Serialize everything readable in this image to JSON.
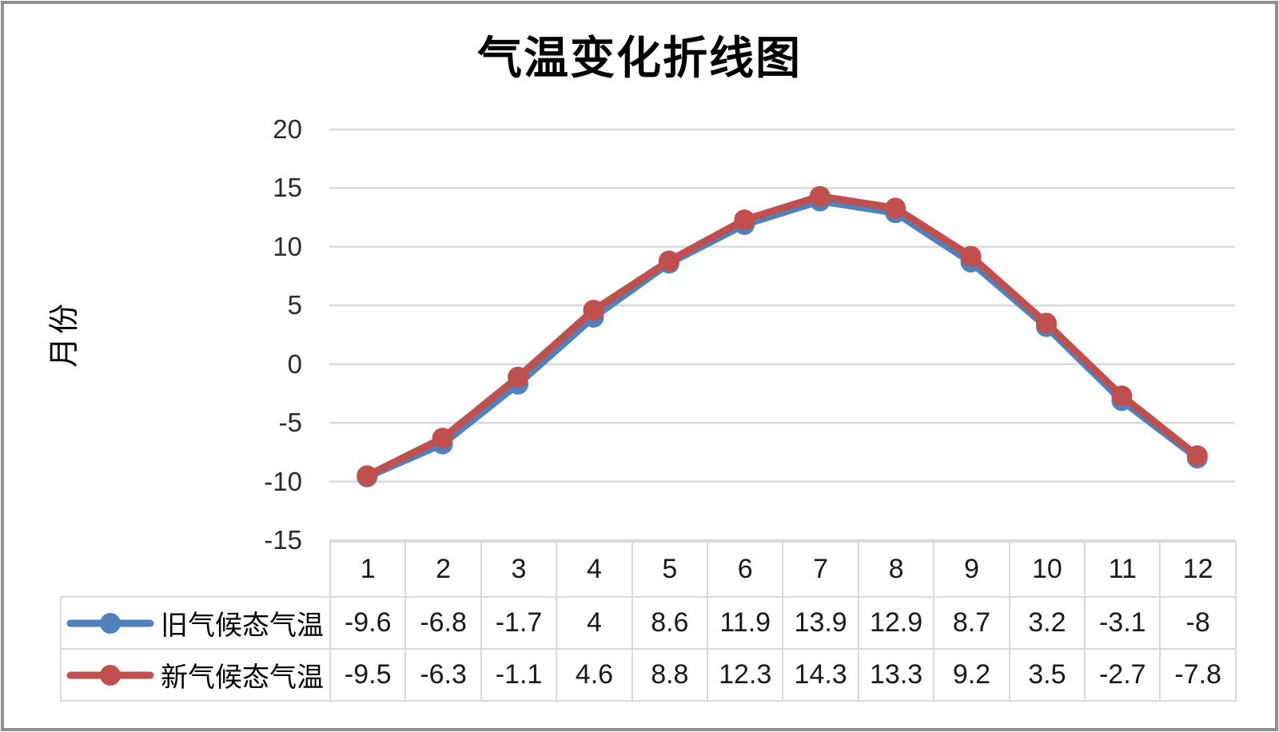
{
  "chart_data": {
    "type": "line",
    "title": "气温变化折线图",
    "y_axis_title": "月份",
    "categories": [
      1,
      2,
      3,
      4,
      5,
      6,
      7,
      8,
      9,
      10,
      11,
      12
    ],
    "series": [
      {
        "name": "旧气候态气温",
        "color": "#4F81BD",
        "values": [
          -9.6,
          -6.8,
          -1.7,
          4,
          8.6,
          11.9,
          13.9,
          12.9,
          8.7,
          3.2,
          -3.1,
          -8
        ]
      },
      {
        "name": "新气候态气温",
        "color": "#C0504D",
        "values": [
          -9.5,
          -6.3,
          -1.1,
          4.6,
          8.8,
          12.3,
          14.3,
          13.3,
          9.2,
          3.5,
          -2.7,
          -7.8
        ]
      }
    ],
    "y_ticks": [
      20,
      15,
      10,
      5,
      0,
      -5,
      -10,
      -15
    ],
    "ylim": [
      -15,
      20
    ],
    "grid": true,
    "gridline_color": "#d9d9d9",
    "legend_position": "data-table-left",
    "data_table": true,
    "marker": "circle"
  }
}
